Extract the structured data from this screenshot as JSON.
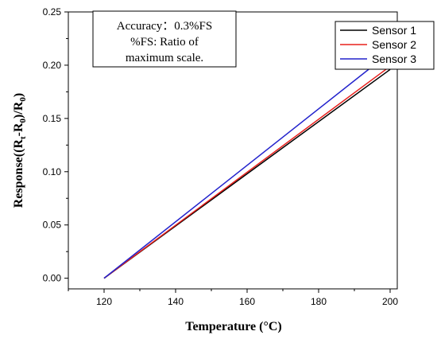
{
  "chart_data": {
    "type": "line",
    "xlabel": "Temperature (°C)",
    "ylabel_parts": [
      "Response((R",
      "t",
      "-R",
      "0",
      ")/R",
      "0",
      ")"
    ],
    "xlim": [
      110,
      202
    ],
    "ylim": [
      -0.01,
      0.25
    ],
    "xticks": [
      120,
      140,
      160,
      180,
      200
    ],
    "yticks": [
      0.0,
      0.05,
      0.1,
      0.15,
      0.2,
      0.25
    ],
    "ytick_labels": [
      "0.00",
      "0.05",
      "0.10",
      "0.15",
      "0.20",
      "0.25"
    ],
    "series": [
      {
        "name": "Sensor 1",
        "color": "#000000",
        "x": [
          120,
          200
        ],
        "y": [
          0.0,
          0.196
        ]
      },
      {
        "name": "Sensor 2",
        "color": "#e8201c",
        "x": [
          120,
          200
        ],
        "y": [
          0.0,
          0.199
        ]
      },
      {
        "name": "Sensor 3",
        "color": "#2222cc",
        "x": [
          120,
          200
        ],
        "y": [
          0.0,
          0.212
        ]
      }
    ],
    "annotation": [
      "Accuracy：0.3%FS",
      "%FS: Ratio of",
      "maximum scale."
    ],
    "legend_position": "top-right",
    "grid": false
  }
}
